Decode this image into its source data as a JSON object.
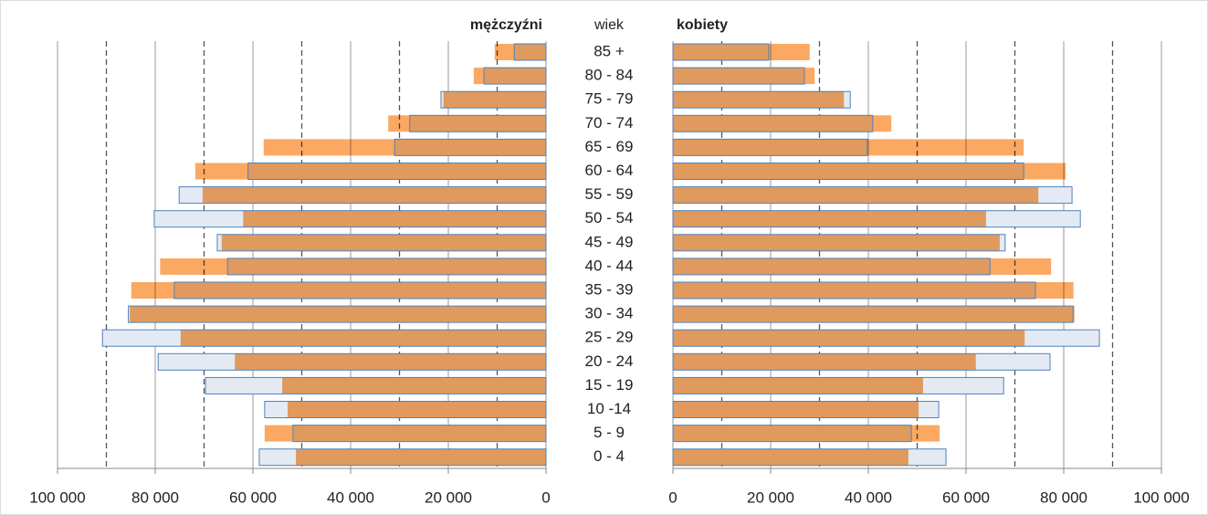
{
  "chart_data": {
    "type": "pyramid",
    "center_label": "wiek",
    "categories": [
      "85 +",
      "80 - 84",
      "75 - 79",
      "70 - 74",
      "65 - 69",
      "60 - 64",
      "55 - 59",
      "50 - 54",
      "45 - 49",
      "40 - 44",
      "35 - 39",
      "30 - 34",
      "25 - 29",
      "20 - 24",
      "15 - 19",
      "10 -14",
      "5 - 9",
      "0 - 4"
    ],
    "xlim": [
      0,
      100000
    ],
    "xticks": [
      {
        "value": 0,
        "label": "0"
      },
      {
        "value": 20000,
        "label": "20 000"
      },
      {
        "value": 40000,
        "label": "40 000"
      },
      {
        "value": 60000,
        "label": "60 000"
      },
      {
        "value": 80000,
        "label": "80 000"
      },
      {
        "value": 100000,
        "label": "100 000"
      }
    ],
    "xticks_minor": [
      10000,
      30000,
      50000,
      70000,
      90000
    ],
    "left": {
      "title": "mężczyźni",
      "series": [
        {
          "color": "#fba862",
          "values": [
            10500,
            14800,
            21000,
            32300,
            57800,
            71800,
            70300,
            62000,
            66400,
            79000,
            84900,
            85200,
            74800,
            63700,
            54000,
            52900,
            57600,
            51200
          ]
        },
        {
          "color": "#4f81bd",
          "fill": "#e4eaf3",
          "values": [
            6500,
            12700,
            21500,
            27900,
            31000,
            61000,
            75100,
            80200,
            67300,
            65200,
            76100,
            85500,
            90800,
            79400,
            69700,
            57600,
            51800,
            58700
          ]
        }
      ]
    },
    "right": {
      "title": "kobiety",
      "series": [
        {
          "color": "#fba862",
          "values": [
            28000,
            29000,
            35000,
            44700,
            71800,
            80400,
            74800,
            64100,
            66900,
            77400,
            82000,
            82200,
            72000,
            62000,
            51200,
            50300,
            54600,
            48200
          ]
        },
        {
          "color": "#4f81bd",
          "fill": "#e4eaf3",
          "values": [
            19600,
            26900,
            36300,
            40900,
            39800,
            71800,
            81700,
            83400,
            68000,
            64900,
            74200,
            81900,
            87300,
            77200,
            67700,
            54400,
            48800,
            55900
          ]
        }
      ]
    }
  }
}
